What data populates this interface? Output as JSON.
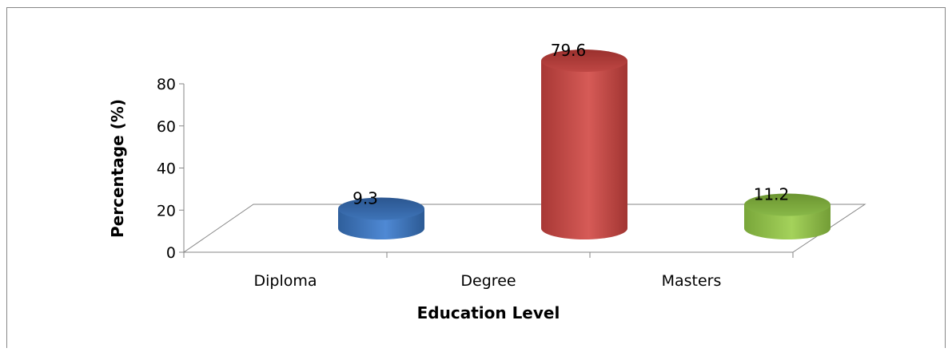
{
  "chart_data": {
    "type": "bar",
    "style": "3d-cylinder",
    "categories": [
      "Diploma",
      "Degree",
      "Masters"
    ],
    "values": [
      9.3,
      79.6,
      11.2
    ],
    "data_labels": [
      "9.3",
      "79.6",
      "11.2"
    ],
    "xlabel": "Education Level",
    "ylabel": "Percentage (%)",
    "ylim": [
      0,
      80
    ],
    "yticks": [
      "0",
      "20",
      "40",
      "60",
      "80"
    ],
    "grid": false,
    "legend": "none",
    "colors": {
      "bars": [
        "#4a7ebb",
        "#c0504d",
        "#8db848"
      ],
      "axis": "#868686",
      "frame": "#868686",
      "text": "#000000"
    }
  }
}
